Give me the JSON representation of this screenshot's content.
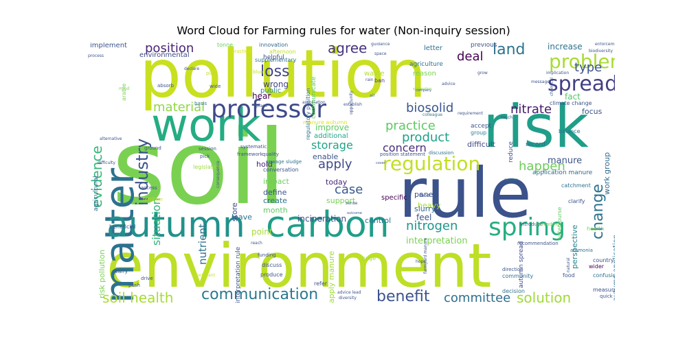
{
  "title": "Word Cloud for Farming rules for water (Non-inquiry session)",
  "words": [
    {
      "text": "soil",
      "color": "#7ad151"
    },
    {
      "text": "pollution",
      "color": "#c8e020"
    },
    {
      "text": "environment",
      "color": "#bddf26"
    },
    {
      "text": "rule",
      "color": "#3b528b"
    },
    {
      "text": "risk",
      "color": "#1f9e89"
    },
    {
      "text": "work",
      "color": "#25ac82"
    },
    {
      "text": "matter",
      "color": "#2c728e"
    },
    {
      "text": "autumn",
      "color": "#21918c"
    },
    {
      "text": "carbon",
      "color": "#1f9e89"
    },
    {
      "text": "professor",
      "color": "#3e4a89"
    },
    {
      "text": "spring",
      "color": "#27ad81"
    },
    {
      "text": "regulation",
      "color": "#c2df23"
    },
    {
      "text": "spread",
      "color": "#433e85"
    },
    {
      "text": "problem",
      "color": "#a8db34"
    },
    {
      "text": "communication",
      "color": "#2a788e"
    },
    {
      "text": "benefit",
      "color": "#3b528b"
    },
    {
      "text": "solution",
      "color": "#a0da39"
    },
    {
      "text": "soil health",
      "color": "#a8db34"
    },
    {
      "text": "committee",
      "color": "#2e6e8e"
    },
    {
      "text": "industry",
      "color": "#3b528b"
    },
    {
      "text": "evidence",
      "color": "#35b779"
    },
    {
      "text": "position",
      "color": "#482475"
    },
    {
      "text": "loss",
      "color": "#414487"
    },
    {
      "text": "agree",
      "color": "#46337e"
    },
    {
      "text": "land",
      "color": "#2c728e"
    },
    {
      "text": "deal",
      "color": "#440154"
    },
    {
      "text": "type",
      "color": "#3b528b"
    },
    {
      "text": "change",
      "color": "#2c728e"
    },
    {
      "text": "material",
      "color": "#8fd744"
    },
    {
      "text": "biosolid",
      "color": "#39568c"
    },
    {
      "text": "nitrate",
      "color": "#48186a"
    },
    {
      "text": "practice",
      "color": "#5ec962"
    },
    {
      "text": "product",
      "color": "#1fa188"
    },
    {
      "text": "storage",
      "color": "#20a486"
    },
    {
      "text": "concern",
      "color": "#472d7b"
    },
    {
      "text": "apply",
      "color": "#3e4989"
    },
    {
      "text": "case",
      "color": "#38588c"
    },
    {
      "text": "happen",
      "color": "#6ccd5a"
    },
    {
      "text": "nitrogen",
      "color": "#1f968b"
    },
    {
      "text": "situation",
      "color": "#31b57b"
    },
    {
      "text": "nutrient",
      "color": "#2d718e"
    },
    {
      "text": "manure",
      "color": "#3b528b"
    },
    {
      "text": "interpretation",
      "color": "#7ad151"
    },
    {
      "text": "incineration",
      "color": "#3e4a89"
    },
    {
      "text": "perspective",
      "color": "#26828e"
    },
    {
      "text": "increase",
      "color": "#2d708e"
    },
    {
      "text": "fact",
      "color": "#52c569"
    },
    {
      "text": "focus",
      "color": "#3b528b"
    },
    {
      "text": "difficult",
      "color": "#3f4788"
    },
    {
      "text": "work group",
      "color": "#31688e"
    },
    {
      "text": "wrong",
      "color": "#414487"
    },
    {
      "text": "public",
      "color": "#26828e"
    },
    {
      "text": "hear",
      "color": "#440154"
    },
    {
      "text": "improve",
      "color": "#5ec962"
    },
    {
      "text": "additional",
      "color": "#20a486"
    },
    {
      "text": "enable",
      "color": "#3b528b"
    },
    {
      "text": "today",
      "color": "#482878"
    },
    {
      "text": "support",
      "color": "#7ad151"
    },
    {
      "text": "define",
      "color": "#3b528b"
    },
    {
      "text": "create",
      "color": "#2c728e"
    },
    {
      "text": "month",
      "color": "#5ec962"
    },
    {
      "text": "impact",
      "color": "#6ccd5a"
    },
    {
      "text": "hold",
      "color": "#482475"
    },
    {
      "text": "store",
      "color": "#3e4989"
    },
    {
      "text": "point",
      "color": "#a8db34"
    },
    {
      "text": "leave",
      "color": "#2c728e"
    },
    {
      "text": "control",
      "color": "#2c728e"
    },
    {
      "text": "feel",
      "color": "#3b528b"
    },
    {
      "text": "panel",
      "color": "#3b528b"
    },
    {
      "text": "heavy",
      "color": "#a0da39"
    },
    {
      "text": "slurry",
      "color": "#31688e"
    },
    {
      "text": "specific",
      "color": "#440154"
    },
    {
      "text": "implement",
      "color": "#3b528b"
    },
    {
      "text": "environmental",
      "color": "#3e4a89"
    },
    {
      "text": "letter",
      "color": "#2c728e"
    },
    {
      "text": "reason",
      "color": "#7ad151"
    },
    {
      "text": "previous",
      "color": "#3b528b"
    },
    {
      "text": "agriculture",
      "color": "#2c728e"
    },
    {
      "text": "waste",
      "color": "#b5de2b"
    },
    {
      "text": "ban",
      "color": "#46337e"
    },
    {
      "text": "innovation",
      "color": "#31688e"
    },
    {
      "text": "supplementary",
      "color": "#2c728e"
    },
    {
      "text": "afternoon",
      "color": "#c2df23"
    },
    {
      "text": "helpful",
      "color": "#3b528b"
    },
    {
      "text": "tonne",
      "color": "#6ccd5a"
    },
    {
      "text": "practical",
      "color": "#dde318"
    },
    {
      "text": "agricultural",
      "color": "#2c728e"
    },
    {
      "text": "arable",
      "color": "#7ad151"
    },
    {
      "text": "communicate",
      "color": "#5ec962"
    },
    {
      "text": "regulatory position",
      "color": "#2c728e"
    },
    {
      "text": "risk pollution",
      "color": "#7ad151"
    },
    {
      "text": "apply manure",
      "color": "#a0da39"
    },
    {
      "text": "interpretation rule",
      "color": "#3b528b"
    },
    {
      "text": "autumn application",
      "color": "#2c728e"
    },
    {
      "text": "autumn spread",
      "color": "#3e4a89"
    },
    {
      "text": "application manure",
      "color": "#31688e"
    },
    {
      "text": "manure autumn",
      "color": "#dde318"
    },
    {
      "text": "reduce",
      "color": "#3b528b"
    },
    {
      "text": "record",
      "color": "#2c728e"
    },
    {
      "text": "accept",
      "color": "#3b528b"
    },
    {
      "text": "group",
      "color": "#26828e"
    },
    {
      "text": "balance",
      "color": "#2c728e"
    },
    {
      "text": "climate change",
      "color": "#3b528b"
    },
    {
      "text": "watercourse",
      "color": "#5ec962"
    },
    {
      "text": "catchment",
      "color": "#2c728e"
    },
    {
      "text": "clarify",
      "color": "#3b528b"
    },
    {
      "text": "health",
      "color": "#7ad151"
    },
    {
      "text": "country",
      "color": "#3b528b"
    },
    {
      "text": "wider",
      "color": "#440154"
    },
    {
      "text": "confusion",
      "color": "#2c728e"
    },
    {
      "text": "food",
      "color": "#3b528b"
    },
    {
      "text": "community",
      "color": "#2c728e"
    },
    {
      "text": "direction",
      "color": "#3b528b"
    },
    {
      "text": "discuss",
      "color": "#3b528b"
    },
    {
      "text": "produce",
      "color": "#3b528b"
    },
    {
      "text": "refer",
      "color": "#3b528b"
    },
    {
      "text": "huge",
      "color": "#a0da39"
    },
    {
      "text": "decision",
      "color": "#2c728e"
    },
    {
      "text": "measure",
      "color": "#3b528b"
    },
    {
      "text": "quick",
      "color": "#3b528b"
    },
    {
      "text": "beneficial",
      "color": "#3b528b"
    },
    {
      "text": "conversation",
      "color": "#3b528b"
    },
    {
      "text": "legislation",
      "color": "#a0da39"
    },
    {
      "text": "quality",
      "color": "#3b528b"
    },
    {
      "text": "sewage sludge",
      "color": "#2c728e"
    },
    {
      "text": "position statement",
      "color": "#3b528b"
    },
    {
      "text": "discussion",
      "color": "#2c728e"
    },
    {
      "text": "recommendation",
      "color": "#3b528b"
    },
    {
      "text": "introduce",
      "color": "#3b528b"
    },
    {
      "text": "spreading",
      "color": "#7ad151"
    },
    {
      "text": "flood",
      "color": "#3b528b"
    },
    {
      "text": "source",
      "color": "#2c728e"
    },
    {
      "text": "ammonia",
      "color": "#2c728e"
    },
    {
      "text": "framework",
      "color": "#3b528b"
    },
    {
      "text": "systematic",
      "color": "#3b528b"
    },
    {
      "text": "session",
      "color": "#3b528b"
    },
    {
      "text": "ground",
      "color": "#3b528b"
    },
    {
      "text": "basis",
      "color": "#2c728e"
    },
    {
      "text": "absorb",
      "color": "#3b528b"
    },
    {
      "text": "wide",
      "color": "#3b528b"
    },
    {
      "text": "mind",
      "color": "#7ad151"
    },
    {
      "text": "play",
      "color": "#c2df23"
    },
    {
      "text": "blunt",
      "color": "#c2df23"
    },
    {
      "text": "pick",
      "color": "#3b528b"
    },
    {
      "text": "access",
      "color": "#3b528b"
    },
    {
      "text": "fertiliser",
      "color": "#c2df23"
    },
    {
      "text": "difficulty",
      "color": "#3b528b"
    },
    {
      "text": "alternative",
      "color": "#3b528b"
    },
    {
      "text": "carry",
      "color": "#3b528b"
    },
    {
      "text": "push",
      "color": "#3b528b"
    },
    {
      "text": "drive",
      "color": "#3b528b"
    },
    {
      "text": "funding",
      "color": "#3b528b"
    },
    {
      "text": "pollutant",
      "color": "#c2df23"
    },
    {
      "text": "biodiversity",
      "color": "#3b528b"
    },
    {
      "text": "implication",
      "color": "#3b528b"
    },
    {
      "text": "enforcement",
      "color": "#3b528b"
    },
    {
      "text": "process",
      "color": "#3b528b"
    },
    {
      "text": "declare",
      "color": "#3b528b"
    },
    {
      "text": "guidance",
      "color": "#3b528b"
    },
    {
      "text": "opportunity",
      "color": "#3b528b"
    },
    {
      "text": "space",
      "color": "#3b528b"
    },
    {
      "text": "advice",
      "color": "#3b528b"
    },
    {
      "text": "rain",
      "color": "#3b528b"
    },
    {
      "text": "suggestion",
      "color": "#7ad151"
    },
    {
      "text": "company",
      "color": "#3b528b"
    },
    {
      "text": "air",
      "color": "#2c728e"
    },
    {
      "text": "establish",
      "color": "#3b528b"
    },
    {
      "text": "colleague",
      "color": "#2c728e"
    },
    {
      "text": "requirement",
      "color": "#3b528b"
    },
    {
      "text": "touch",
      "color": "#3b528b"
    },
    {
      "text": "advice lead",
      "color": "#3b528b"
    },
    {
      "text": "diversity",
      "color": "#3b528b"
    },
    {
      "text": "association",
      "color": "#3b528b"
    },
    {
      "text": "place",
      "color": "#3b528b"
    },
    {
      "text": "sense",
      "color": "#3b528b"
    },
    {
      "text": "outcome",
      "color": "#3b528b"
    },
    {
      "text": "farmyard manure",
      "color": "#3b528b"
    },
    {
      "text": "consequence",
      "color": "#3b528b"
    },
    {
      "text": "cover",
      "color": "#3b528b"
    },
    {
      "text": "message",
      "color": "#3b528b"
    },
    {
      "text": "chemical",
      "color": "#3b528b"
    },
    {
      "text": "natural",
      "color": "#3b528b"
    },
    {
      "text": "grow",
      "color": "#3b528b"
    },
    {
      "text": "hope",
      "color": "#3b528b"
    },
    {
      "text": "reach",
      "color": "#3b528b"
    }
  ]
}
